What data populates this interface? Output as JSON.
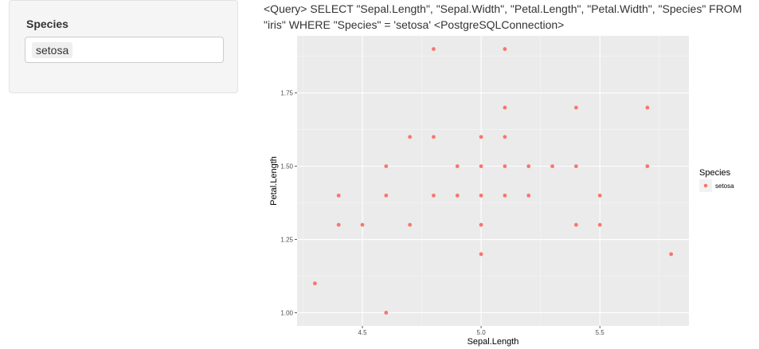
{
  "sidebar": {
    "filter_label": "Species",
    "selected_value": "setosa"
  },
  "query_text": "<Query> SELECT \"Sepal.Length\", \"Sepal.Width\", \"Petal.Length\", \"Petal.Width\", \"Species\" FROM \"iris\" WHERE \"Species\" = 'setosa' <PostgreSQLConnection>",
  "chart_data": {
    "type": "scatter",
    "xlabel": "Sepal.Length",
    "ylabel": "Petal.Length",
    "xlim": [
      4.225,
      5.875
    ],
    "ylim": [
      0.955,
      1.945
    ],
    "x_ticks": [
      4.5,
      5.0,
      5.5
    ],
    "x_tick_labels": [
      "4.5",
      "5.0",
      "5.5"
    ],
    "y_ticks": [
      1.0,
      1.25,
      1.5,
      1.75
    ],
    "y_tick_labels": [
      "1.00",
      "1.25",
      "1.50",
      "1.75"
    ],
    "grid": true,
    "legend_title": "Species",
    "legend_position": "right",
    "series": [
      {
        "name": "setosa",
        "color": "#f8766d",
        "points": [
          [
            4.3,
            1.1
          ],
          [
            4.4,
            1.4
          ],
          [
            4.4,
            1.3
          ],
          [
            4.5,
            1.3
          ],
          [
            4.6,
            1.5
          ],
          [
            4.6,
            1.4
          ],
          [
            4.6,
            1.0
          ],
          [
            4.7,
            1.6
          ],
          [
            4.7,
            1.3
          ],
          [
            4.8,
            1.9
          ],
          [
            4.8,
            1.6
          ],
          [
            4.8,
            1.4
          ],
          [
            4.9,
            1.5
          ],
          [
            4.9,
            1.4
          ],
          [
            5.0,
            1.6
          ],
          [
            5.0,
            1.5
          ],
          [
            5.0,
            1.4
          ],
          [
            5.0,
            1.3
          ],
          [
            5.0,
            1.2
          ],
          [
            5.1,
            1.9
          ],
          [
            5.1,
            1.7
          ],
          [
            5.1,
            1.6
          ],
          [
            5.1,
            1.5
          ],
          [
            5.1,
            1.4
          ],
          [
            5.2,
            1.5
          ],
          [
            5.2,
            1.4
          ],
          [
            5.3,
            1.5
          ],
          [
            5.4,
            1.7
          ],
          [
            5.4,
            1.5
          ],
          [
            5.4,
            1.3
          ],
          [
            5.5,
            1.4
          ],
          [
            5.5,
            1.3
          ],
          [
            5.7,
            1.7
          ],
          [
            5.7,
            1.5
          ],
          [
            5.8,
            1.2
          ]
        ]
      }
    ]
  }
}
